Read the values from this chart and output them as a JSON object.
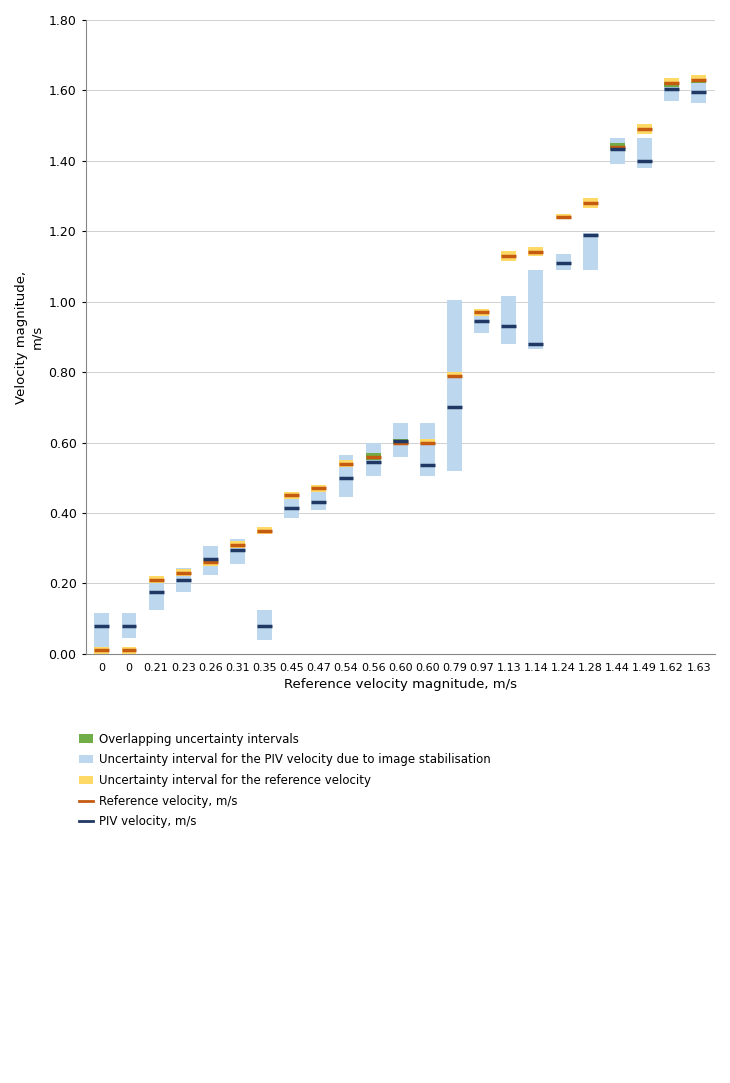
{
  "x_labels": [
    "0",
    "0",
    "0.21",
    "0.23",
    "0.26",
    "0.31",
    "0.35",
    "0.45",
    "0.47",
    "0.54",
    "0.56",
    "0.60",
    "0.60",
    "0.79",
    "0.97",
    "1.13",
    "1.14",
    "1.24",
    "1.28",
    "1.44",
    "1.49",
    "1.62",
    "1.63"
  ],
  "piv_velocity": [
    0.08,
    0.08,
    0.175,
    0.21,
    0.27,
    0.295,
    0.08,
    0.415,
    0.43,
    0.5,
    0.545,
    0.605,
    0.535,
    0.7,
    0.945,
    0.93,
    0.88,
    1.11,
    1.19,
    1.435,
    1.4,
    1.605,
    1.595
  ],
  "ref_velocity": [
    0.01,
    0.01,
    0.21,
    0.23,
    0.26,
    0.31,
    0.35,
    0.45,
    0.47,
    0.54,
    0.56,
    0.6,
    0.6,
    0.79,
    0.97,
    1.13,
    1.14,
    1.24,
    1.28,
    1.44,
    1.49,
    1.62,
    1.63
  ],
  "piv_low": [
    0.015,
    0.045,
    0.125,
    0.175,
    0.225,
    0.255,
    0.04,
    0.385,
    0.41,
    0.445,
    0.505,
    0.56,
    0.505,
    0.52,
    0.91,
    0.88,
    0.865,
    1.09,
    1.09,
    1.39,
    1.38,
    1.57,
    1.565
  ],
  "piv_high": [
    0.115,
    0.115,
    0.215,
    0.245,
    0.305,
    0.325,
    0.125,
    0.455,
    0.475,
    0.565,
    0.6,
    0.655,
    0.655,
    1.005,
    0.975,
    1.015,
    1.09,
    1.135,
    1.195,
    1.465,
    1.465,
    1.625,
    1.625
  ],
  "ref_low": [
    0.0,
    0.0,
    0.2,
    0.22,
    0.25,
    0.3,
    0.34,
    0.44,
    0.46,
    0.53,
    0.55,
    0.595,
    0.595,
    0.785,
    0.96,
    1.115,
    1.13,
    1.235,
    1.265,
    1.43,
    1.475,
    1.61,
    1.62
  ],
  "ref_high": [
    0.02,
    0.02,
    0.22,
    0.24,
    0.27,
    0.32,
    0.36,
    0.46,
    0.48,
    0.55,
    0.57,
    0.61,
    0.61,
    0.8,
    0.98,
    1.145,
    1.155,
    1.25,
    1.295,
    1.45,
    1.505,
    1.635,
    1.645
  ],
  "has_ref_box": [
    true,
    true,
    true,
    true,
    true,
    true,
    true,
    true,
    true,
    true,
    true,
    true,
    true,
    true,
    true,
    true,
    true,
    true,
    true,
    true,
    true,
    true,
    true
  ],
  "has_piv_box": [
    true,
    true,
    true,
    true,
    true,
    true,
    true,
    true,
    true,
    true,
    true,
    true,
    true,
    true,
    true,
    true,
    true,
    true,
    true,
    true,
    true,
    true,
    true
  ],
  "overlap_low": [
    null,
    null,
    null,
    null,
    null,
    null,
    null,
    null,
    null,
    null,
    0.55,
    0.595,
    null,
    null,
    null,
    null,
    null,
    null,
    null,
    1.43,
    null,
    1.61,
    1.62
  ],
  "overlap_high": [
    null,
    null,
    null,
    null,
    null,
    null,
    null,
    null,
    null,
    null,
    0.57,
    0.61,
    null,
    null,
    null,
    null,
    null,
    null,
    null,
    1.45,
    null,
    1.625,
    1.625
  ],
  "color_piv": "#BDD7EE",
  "color_ref": "#FFD966",
  "color_overlap": "#70AD47",
  "color_piv_line": "#1F3864",
  "color_ref_line": "#C55A11",
  "xlabel": "Reference velocity magnitude, m/s",
  "ylabel": "Velocity magnitude,\nm/s",
  "ylim": [
    0.0,
    1.8
  ],
  "ytick_vals": [
    0.0,
    0.2,
    0.4,
    0.6,
    0.8,
    1.0,
    1.2,
    1.4,
    1.6,
    1.8
  ],
  "ytick_labels": [
    "0.00",
    "0.20",
    "0.40",
    "0.60",
    "0.80",
    "1.00",
    "1.20",
    "1.40",
    "1.60",
    "1.80"
  ],
  "legend_labels": [
    "Overlapping uncertainty intervals",
    "Uncertainty interval for the PIV velocity due to image stabilisation",
    "Uncertainty interval for the reference velocity",
    "Reference velocity, m/s",
    "PIV velocity, m/s"
  ],
  "bar_width": 0.55,
  "line_width": 2.5
}
